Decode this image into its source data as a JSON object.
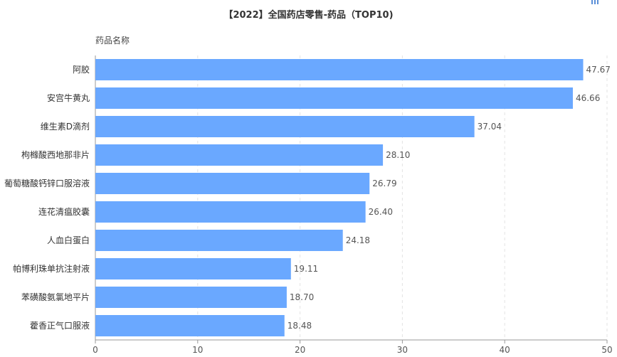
{
  "chart_data": {
    "type": "bar",
    "orientation": "horizontal",
    "title": "【2022】全国药店零售-药品（TOP10)",
    "ylabel": "药品名称",
    "xlabel": "",
    "xlim": [
      0,
      50
    ],
    "xticks": [
      0,
      10,
      20,
      30,
      40,
      50
    ],
    "grid": true,
    "categories": [
      "阿胶",
      "安宫牛黄丸",
      "维生素D滴剂",
      "枸橼酸西地那非片",
      "葡萄糖酸钙锌口服溶液",
      "连花清瘟胶囊",
      "人血白蛋白",
      "帕博利珠单抗注射液",
      "苯磺酸氨氯地平片",
      "藿香正气口服液"
    ],
    "values": [
      47.67,
      46.66,
      37.04,
      28.1,
      26.79,
      26.4,
      24.18,
      19.11,
      18.7,
      18.48
    ],
    "value_labels": [
      "47.67",
      "46.66",
      "37.04",
      "28.10",
      "26.79",
      "26.40",
      "24.18",
      "19.11",
      "18.70",
      "18.48"
    ],
    "bar_color": "#6aa8ff"
  },
  "toolbar": {
    "icon": "bar-chart-icon"
  }
}
